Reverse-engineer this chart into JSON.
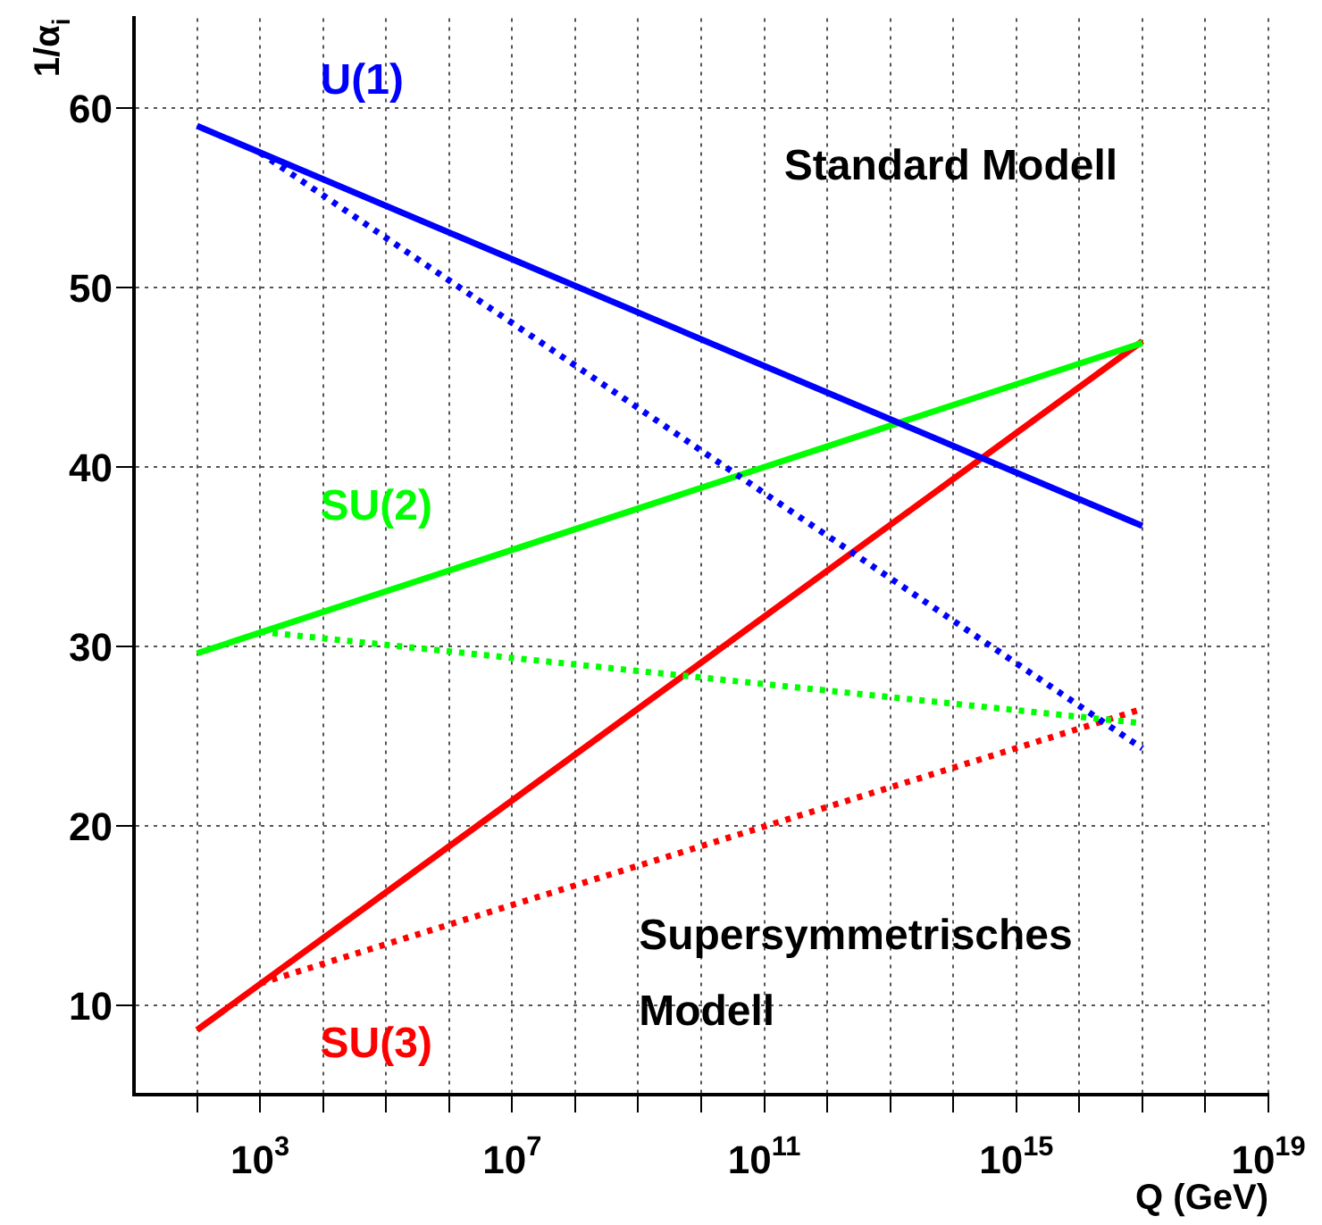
{
  "chart_data": {
    "type": "line",
    "xlabel": "Q (GeV)",
    "ylabel": "1/α$_{i}$",
    "xlim": [
      10,
      1e+19
    ],
    "ylim": [
      5,
      65
    ],
    "xticks": [
      {
        "value": 100,
        "label": null
      },
      {
        "value": 1000.0,
        "label": "10$^{3}$"
      },
      {
        "value": 10000.0,
        "label": null
      },
      {
        "value": 100000.0,
        "label": null
      },
      {
        "value": 1000000.0,
        "label": null
      },
      {
        "value": 10000000.0,
        "label": "10$^{7}$"
      },
      {
        "value": 100000000.0,
        "label": null
      },
      {
        "value": 1000000000.0,
        "label": null
      },
      {
        "value": 10000000000.0,
        "label": null
      },
      {
        "value": 100000000000.0,
        "label": "10$^{11}$"
      },
      {
        "value": 1000000000000.0,
        "label": null
      },
      {
        "value": 10000000000000.0,
        "label": null
      },
      {
        "value": 100000000000000.0,
        "label": null
      },
      {
        "value": 1000000000000000.0,
        "label": "10$^{15}$"
      },
      {
        "value": 1e+16,
        "label": null
      },
      {
        "value": 1e+17,
        "label": null
      },
      {
        "value": 1e+18,
        "label": null
      },
      {
        "value": 1e+19,
        "label": "10$^{19}$"
      }
    ],
    "yticks": [
      10,
      20,
      30,
      40,
      50,
      60
    ],
    "log": "x",
    "grid": true,
    "marker": "none",
    "legend": false,
    "series": [
      {
        "name": "U(1)",
        "color": "#0000ff",
        "line_style": "solid",
        "x": [
          100,
          1e+17
        ],
        "values": [
          59.0,
          36.7
        ]
      },
      {
        "color": "#0000ff",
        "line_style": "dotted",
        "x": [
          1000.0,
          1e+17
        ],
        "values": [
          57.5,
          24.3
        ]
      },
      {
        "name": "SU(2)",
        "color": "#00ff00",
        "line_style": "solid",
        "x": [
          100,
          1e+17
        ],
        "values": [
          29.6,
          46.9
        ]
      },
      {
        "color": "#00ff00",
        "line_style": "dotted",
        "x": [
          1000.0,
          1e+17
        ],
        "values": [
          30.8,
          25.7
        ]
      },
      {
        "name": "SU(3)",
        "color": "#ff0000",
        "line_style": "solid",
        "x": [
          100,
          1e+17
        ],
        "values": [
          8.6,
          47.0
        ]
      },
      {
        "color": "#ff0000",
        "line_style": "dotted",
        "x": [
          1000.0,
          1e+17
        ],
        "values": [
          11.2,
          26.5
        ]
      }
    ],
    "annotations": [
      "Standard Modell",
      "Supersymmetrisches Modell"
    ]
  }
}
